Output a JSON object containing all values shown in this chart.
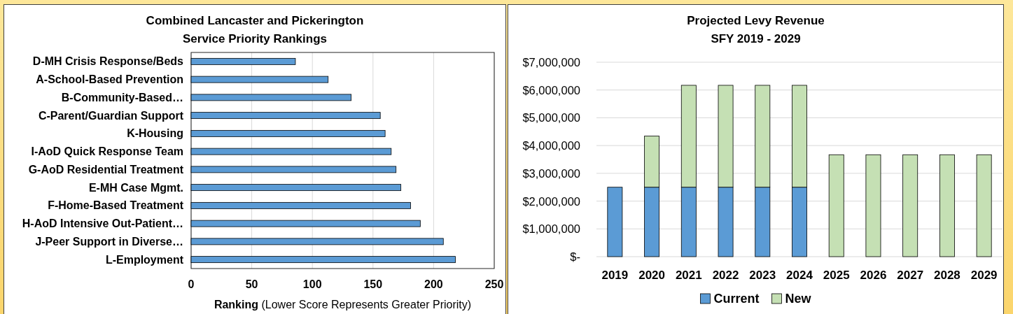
{
  "chart_data": [
    {
      "type": "bar",
      "orientation": "horizontal",
      "title": "Combined Lancaster and Pickerington\nService Priority Rankings",
      "categories": [
        "D-MH Crisis Response/Beds",
        "A-School-Based Prevention",
        "B-Community-Based…",
        "C-Parent/Guardian Support",
        "K-Housing",
        "I-AoD Quick Response Team",
        "G-AoD Residential Treatment",
        "E-MH Case Mgmt.",
        "F-Home-Based Treatment",
        "H-AoD Intensive Out-Patient…",
        "J-Peer Support in Diverse…",
        "L-Employment"
      ],
      "values": [
        86,
        113,
        132,
        156,
        160,
        165,
        169,
        173,
        181,
        189,
        208,
        218
      ],
      "color": "#5b9bd5",
      "xlabel": "Ranking (Lower Score Represents Greater Priority)",
      "xlim": [
        0,
        250
      ],
      "xticks": [
        0,
        50,
        100,
        150,
        200,
        250
      ],
      "grid": "x"
    },
    {
      "type": "bar",
      "stacked": true,
      "title": "Projected Levy Revenue\nSFY 2019 - 2029",
      "categories": [
        "2019",
        "2020",
        "2021",
        "2022",
        "2023",
        "2024",
        "2025",
        "2026",
        "2027",
        "2028",
        "2029"
      ],
      "series": [
        {
          "name": "Current",
          "color": "#5b9bd5",
          "values": [
            2500000,
            2500000,
            2500000,
            2500000,
            2500000,
            2500000,
            null,
            null,
            null,
            null,
            null
          ]
        },
        {
          "name": "New",
          "color": "#c5e0b4",
          "values": [
            null,
            1840000,
            3670000,
            3670000,
            3670000,
            3670000,
            3670000,
            3670000,
            3670000,
            3670000,
            3670000
          ]
        }
      ],
      "ylim": [
        0,
        7000000
      ],
      "yticks": [
        {
          "value": 0,
          "label": "$-"
        },
        {
          "value": 1000000,
          "label": "$1,000,000"
        },
        {
          "value": 2000000,
          "label": "$2,000,000"
        },
        {
          "value": 3000000,
          "label": "$3,000,000"
        },
        {
          "value": 4000000,
          "label": "$4,000,000"
        },
        {
          "value": 5000000,
          "label": "$5,000,000"
        },
        {
          "value": 6000000,
          "label": "$6,000,000"
        },
        {
          "value": 7000000,
          "label": "$7,000,000"
        }
      ],
      "grid": "y",
      "legend": "bottom"
    }
  ]
}
